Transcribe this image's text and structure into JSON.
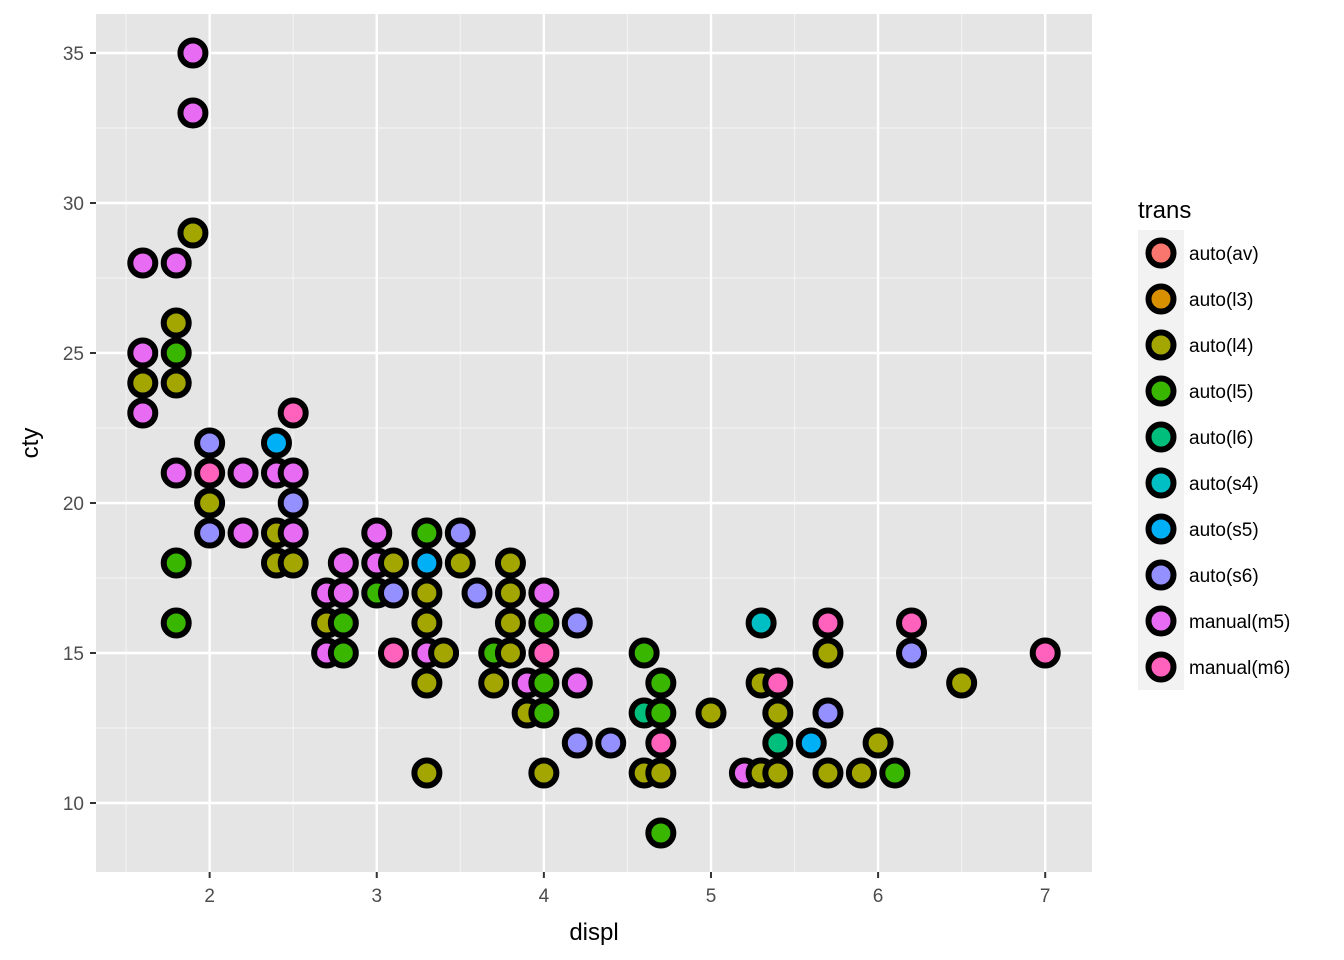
{
  "chart_data": {
    "type": "scatter",
    "title": "",
    "xlabel": "displ",
    "ylabel": "cty",
    "xlim": [
      1.32,
      7.28
    ],
    "ylim": [
      7.7,
      36.3
    ],
    "x_ticks": [
      2,
      3,
      4,
      5,
      6,
      7
    ],
    "y_ticks": [
      10,
      15,
      20,
      25,
      30,
      35
    ],
    "grid": true,
    "legend": {
      "title": "trans",
      "placement": "right",
      "entries": [
        "auto(av)",
        "auto(l3)",
        "auto(l4)",
        "auto(l5)",
        "auto(l6)",
        "auto(s4)",
        "auto(s5)",
        "auto(s6)",
        "manual(m5)",
        "manual(m6)"
      ]
    },
    "colors": {
      "auto(av)": "#F8766D",
      "auto(l3)": "#D89000",
      "auto(l4)": "#A3A500",
      "auto(l5)": "#39B600",
      "auto(l6)": "#00BF7D",
      "auto(s4)": "#00BFC4",
      "auto(s5)": "#00B0F6",
      "auto(s6)": "#9590FF",
      "manual(m5)": "#E76BF3",
      "manual(m6)": "#FF62BC"
    },
    "points": [
      {
        "x": 1.9,
        "y": 35,
        "trans": "manual(m5)"
      },
      {
        "x": 1.9,
        "y": 33,
        "trans": "manual(m5)"
      },
      {
        "x": 1.9,
        "y": 29,
        "trans": "auto(l4)"
      },
      {
        "x": 1.6,
        "y": 28,
        "trans": "manual(m5)"
      },
      {
        "x": 1.8,
        "y": 28,
        "trans": "manual(m5)"
      },
      {
        "x": 1.8,
        "y": 26,
        "trans": "auto(l4)"
      },
      {
        "x": 1.6,
        "y": 25,
        "trans": "manual(m5)"
      },
      {
        "x": 1.8,
        "y": 25,
        "trans": "auto(l5)"
      },
      {
        "x": 1.6,
        "y": 24,
        "trans": "auto(l4)"
      },
      {
        "x": 1.8,
        "y": 24,
        "trans": "auto(l4)"
      },
      {
        "x": 1.6,
        "y": 23,
        "trans": "manual(m5)"
      },
      {
        "x": 2.5,
        "y": 23,
        "trans": "manual(m6)"
      },
      {
        "x": 2.0,
        "y": 22,
        "trans": "auto(s6)"
      },
      {
        "x": 2.4,
        "y": 22,
        "trans": "auto(s5)"
      },
      {
        "x": 1.8,
        "y": 21,
        "trans": "manual(m5)"
      },
      {
        "x": 2.0,
        "y": 21,
        "trans": "manual(m6)"
      },
      {
        "x": 2.2,
        "y": 21,
        "trans": "manual(m5)"
      },
      {
        "x": 2.4,
        "y": 21,
        "trans": "manual(m5)"
      },
      {
        "x": 2.5,
        "y": 21,
        "trans": "manual(m5)"
      },
      {
        "x": 2.0,
        "y": 20,
        "trans": "auto(l4)"
      },
      {
        "x": 2.5,
        "y": 20,
        "trans": "auto(s6)"
      },
      {
        "x": 2.0,
        "y": 19,
        "trans": "auto(s6)"
      },
      {
        "x": 2.2,
        "y": 19,
        "trans": "manual(m5)"
      },
      {
        "x": 2.4,
        "y": 19,
        "trans": "auto(l4)"
      },
      {
        "x": 2.5,
        "y": 19,
        "trans": "manual(m5)"
      },
      {
        "x": 3.0,
        "y": 19,
        "trans": "manual(m5)"
      },
      {
        "x": 3.3,
        "y": 19,
        "trans": "auto(l5)"
      },
      {
        "x": 3.5,
        "y": 19,
        "trans": "auto(s6)"
      },
      {
        "x": 1.8,
        "y": 18,
        "trans": "auto(l5)"
      },
      {
        "x": 2.4,
        "y": 18,
        "trans": "auto(l4)"
      },
      {
        "x": 2.5,
        "y": 18,
        "trans": "auto(l4)"
      },
      {
        "x": 2.8,
        "y": 18,
        "trans": "manual(m5)"
      },
      {
        "x": 3.0,
        "y": 18,
        "trans": "manual(m5)"
      },
      {
        "x": 3.1,
        "y": 18,
        "trans": "auto(l4)"
      },
      {
        "x": 3.3,
        "y": 18,
        "trans": "auto(s5)"
      },
      {
        "x": 3.5,
        "y": 18,
        "trans": "auto(l4)"
      },
      {
        "x": 3.8,
        "y": 18,
        "trans": "auto(l4)"
      },
      {
        "x": 2.7,
        "y": 17,
        "trans": "manual(m5)"
      },
      {
        "x": 2.8,
        "y": 17,
        "trans": "manual(m5)"
      },
      {
        "x": 3.0,
        "y": 17,
        "trans": "auto(l5)"
      },
      {
        "x": 3.1,
        "y": 17,
        "trans": "auto(s6)"
      },
      {
        "x": 3.3,
        "y": 17,
        "trans": "auto(l4)"
      },
      {
        "x": 3.6,
        "y": 17,
        "trans": "auto(s6)"
      },
      {
        "x": 3.8,
        "y": 17,
        "trans": "auto(l4)"
      },
      {
        "x": 4.0,
        "y": 17,
        "trans": "manual(m5)"
      },
      {
        "x": 2.7,
        "y": 16,
        "trans": "auto(l4)"
      },
      {
        "x": 2.8,
        "y": 16,
        "trans": "auto(l5)"
      },
      {
        "x": 1.8,
        "y": 16,
        "trans": "auto(l5)"
      },
      {
        "x": 3.3,
        "y": 16,
        "trans": "auto(l4)"
      },
      {
        "x": 3.8,
        "y": 16,
        "trans": "auto(l4)"
      },
      {
        "x": 4.0,
        "y": 16,
        "trans": "auto(l5)"
      },
      {
        "x": 4.2,
        "y": 16,
        "trans": "auto(s6)"
      },
      {
        "x": 5.3,
        "y": 16,
        "trans": "auto(s4)"
      },
      {
        "x": 5.7,
        "y": 16,
        "trans": "manual(m6)"
      },
      {
        "x": 6.2,
        "y": 16,
        "trans": "manual(m6)"
      },
      {
        "x": 2.7,
        "y": 15,
        "trans": "manual(m5)"
      },
      {
        "x": 2.8,
        "y": 15,
        "trans": "auto(l5)"
      },
      {
        "x": 3.1,
        "y": 15,
        "trans": "manual(m6)"
      },
      {
        "x": 3.3,
        "y": 15,
        "trans": "manual(m5)"
      },
      {
        "x": 3.4,
        "y": 15,
        "trans": "auto(l4)"
      },
      {
        "x": 3.7,
        "y": 15,
        "trans": "auto(l5)"
      },
      {
        "x": 3.8,
        "y": 15,
        "trans": "auto(l4)"
      },
      {
        "x": 4.0,
        "y": 15,
        "trans": "manual(m6)"
      },
      {
        "x": 4.6,
        "y": 15,
        "trans": "auto(l5)"
      },
      {
        "x": 5.7,
        "y": 15,
        "trans": "auto(l4)"
      },
      {
        "x": 6.2,
        "y": 15,
        "trans": "auto(s6)"
      },
      {
        "x": 7.0,
        "y": 15,
        "trans": "manual(m6)"
      },
      {
        "x": 3.3,
        "y": 14,
        "trans": "auto(l4)"
      },
      {
        "x": 3.7,
        "y": 14,
        "trans": "auto(l4)"
      },
      {
        "x": 3.9,
        "y": 14,
        "trans": "manual(m5)"
      },
      {
        "x": 4.0,
        "y": 14,
        "trans": "auto(l5)"
      },
      {
        "x": 4.2,
        "y": 14,
        "trans": "manual(m5)"
      },
      {
        "x": 4.7,
        "y": 14,
        "trans": "auto(l5)"
      },
      {
        "x": 5.3,
        "y": 14,
        "trans": "auto(l4)"
      },
      {
        "x": 5.4,
        "y": 14,
        "trans": "manual(m6)"
      },
      {
        "x": 6.5,
        "y": 14,
        "trans": "auto(l4)"
      },
      {
        "x": 3.9,
        "y": 13,
        "trans": "auto(l4)"
      },
      {
        "x": 4.0,
        "y": 13,
        "trans": "auto(l5)"
      },
      {
        "x": 4.6,
        "y": 13,
        "trans": "auto(l6)"
      },
      {
        "x": 4.7,
        "y": 13,
        "trans": "auto(l5)"
      },
      {
        "x": 5.0,
        "y": 13,
        "trans": "auto(l4)"
      },
      {
        "x": 5.4,
        "y": 13,
        "trans": "auto(l4)"
      },
      {
        "x": 5.7,
        "y": 13,
        "trans": "auto(s6)"
      },
      {
        "x": 4.2,
        "y": 12,
        "trans": "auto(s6)"
      },
      {
        "x": 4.4,
        "y": 12,
        "trans": "auto(s6)"
      },
      {
        "x": 4.7,
        "y": 12,
        "trans": "manual(m6)"
      },
      {
        "x": 5.4,
        "y": 12,
        "trans": "auto(l6)"
      },
      {
        "x": 5.6,
        "y": 12,
        "trans": "auto(s5)"
      },
      {
        "x": 6.0,
        "y": 12,
        "trans": "auto(l4)"
      },
      {
        "x": 3.3,
        "y": 11,
        "trans": "auto(l4)"
      },
      {
        "x": 4.0,
        "y": 11,
        "trans": "auto(l4)"
      },
      {
        "x": 4.6,
        "y": 11,
        "trans": "auto(l4)"
      },
      {
        "x": 4.7,
        "y": 11,
        "trans": "auto(l4)"
      },
      {
        "x": 5.2,
        "y": 11,
        "trans": "manual(m5)"
      },
      {
        "x": 5.3,
        "y": 11,
        "trans": "auto(l4)"
      },
      {
        "x": 5.4,
        "y": 11,
        "trans": "auto(l4)"
      },
      {
        "x": 5.7,
        "y": 11,
        "trans": "auto(l4)"
      },
      {
        "x": 5.9,
        "y": 11,
        "trans": "auto(l4)"
      },
      {
        "x": 6.1,
        "y": 11,
        "trans": "auto(l5)"
      },
      {
        "x": 4.7,
        "y": 9,
        "trans": "auto(l5)"
      }
    ]
  }
}
